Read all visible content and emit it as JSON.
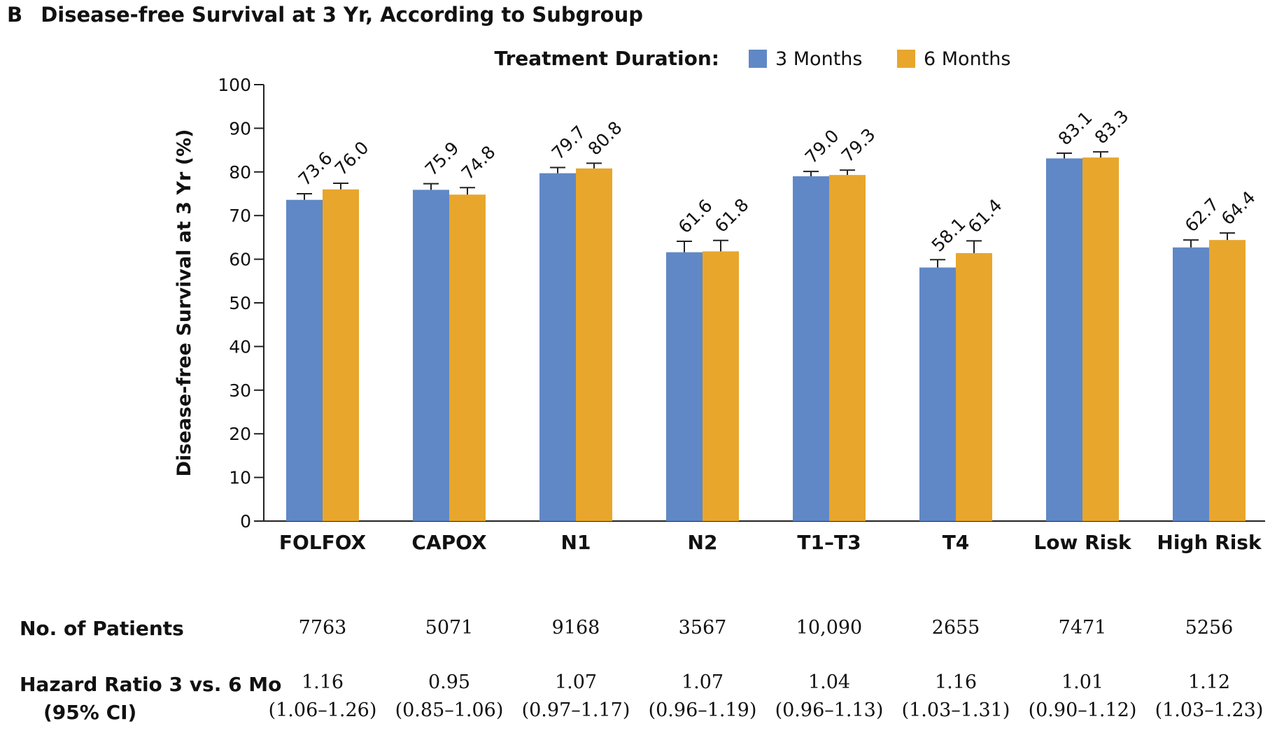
{
  "panel": {
    "letter": "B",
    "title": "Disease-free Survival at 3 Yr, According to Subgroup"
  },
  "colors": {
    "series_3mo": "#6088c6",
    "series_6mo": "#e8a62c",
    "axis": "#222222"
  },
  "chart_data": {
    "type": "bar",
    "categories": [
      "FOLFOX",
      "CAPOX",
      "N1",
      "N2",
      "T1–T3",
      "T4",
      "Low Risk",
      "High Risk"
    ],
    "series": [
      {
        "name": "3 Months",
        "values": [
          73.6,
          75.9,
          79.7,
          61.6,
          79.0,
          58.1,
          83.1,
          62.7
        ]
      },
      {
        "name": "6 Months",
        "values": [
          76.0,
          74.8,
          80.8,
          61.8,
          79.3,
          61.4,
          83.3,
          64.4
        ]
      }
    ],
    "value_labels": [
      [
        "73.6",
        "75.9",
        "79.7",
        "61.6",
        "79.0",
        "58.1",
        "83.1",
        "62.7"
      ],
      [
        "76.0",
        "74.8",
        "80.8",
        "61.8",
        "79.3",
        "61.4",
        "83.3",
        "64.4"
      ]
    ],
    "error_upper": [
      [
        75.0,
        77.3,
        81.0,
        64.1,
        80.1,
        59.9,
        84.3,
        64.4
      ],
      [
        77.4,
        76.4,
        82.0,
        64.3,
        80.4,
        64.2,
        84.6,
        66.0
      ]
    ],
    "legend_title": "Treatment Duration:",
    "legend_position": "top-right",
    "ylabel": "Disease-free Survival at 3 Yr (%)",
    "xlabel": "",
    "ylim": [
      0,
      100
    ],
    "yticks": [
      0,
      10,
      20,
      30,
      40,
      50,
      60,
      70,
      80,
      90,
      100
    ],
    "grid": false
  },
  "table": {
    "patients_label": "No. of Patients",
    "patients": [
      "7763",
      "5071",
      "9168",
      "3567",
      "10,090",
      "2655",
      "7471",
      "5256"
    ],
    "hr_label_line1": "Hazard Ratio 3 vs. 6 Mo",
    "hr_label_line2": "(95% CI)",
    "hr": [
      "1.16",
      "0.95",
      "1.07",
      "1.07",
      "1.04",
      "1.16",
      "1.01",
      "1.12"
    ],
    "ci": [
      "(1.06–1.26)",
      "(0.85–1.06)",
      "(0.97–1.17)",
      "(0.96–1.19)",
      "(0.96–1.13)",
      "(1.03–1.31)",
      "(0.90–1.12)",
      "(1.03–1.23)"
    ]
  }
}
